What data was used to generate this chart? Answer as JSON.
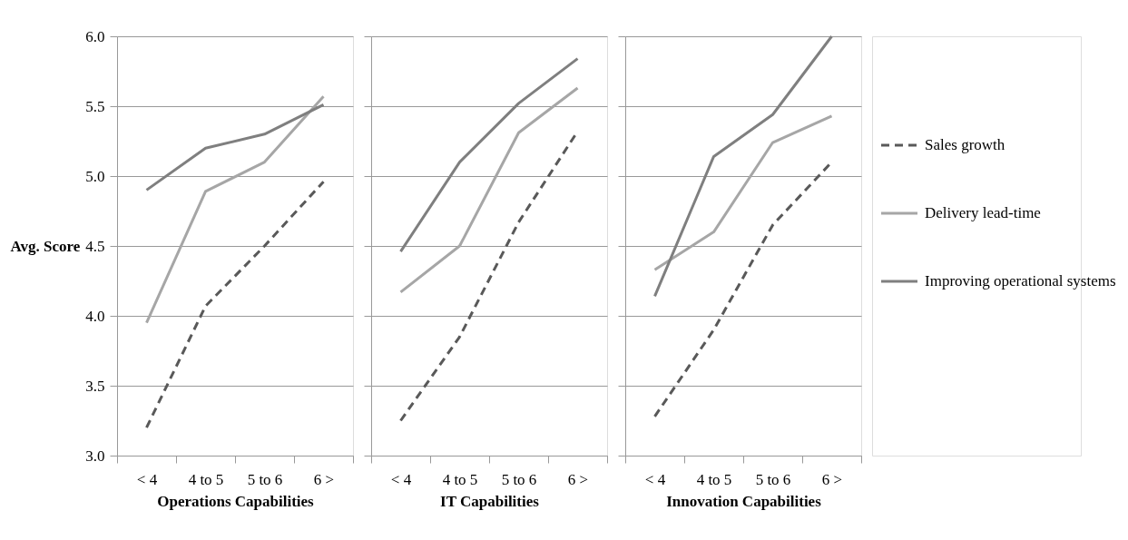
{
  "chart_data": [
    {
      "type": "line",
      "xlabel": "Operations Capabilities",
      "ylabel": "Avg. Score",
      "categories": [
        "< 4",
        "4 to 5",
        "5 to 6",
        "6 >"
      ],
      "ylim": [
        3.0,
        6.0
      ],
      "yticks": [
        {
          "value": 3,
          "label": "3.0"
        },
        {
          "value": 3.5,
          "label": "3.5"
        },
        {
          "value": 4,
          "label": "4.0"
        },
        {
          "value": 4.5,
          "label": "4.5"
        },
        {
          "value": 5,
          "label": "5.0"
        },
        {
          "value": 5.5,
          "label": "5.5"
        },
        {
          "value": 6,
          "label": "6.0"
        }
      ],
      "grid": "y",
      "series": [
        {
          "color": "#595959",
          "line_style": "dashed",
          "values": [
            3.2,
            4.07,
            4.5,
            4.96
          ]
        },
        {
          "color": "#a6a6a6",
          "line_style": "solid",
          "values": [
            3.95,
            4.89,
            5.1,
            5.57
          ]
        },
        {
          "color": "#7f7f7f",
          "line_style": "solid",
          "values": [
            4.9,
            5.2,
            5.3,
            5.51
          ]
        }
      ]
    },
    {
      "type": "line",
      "xlabel": "IT Capabilities",
      "categories": [
        "< 4",
        "4 to 5",
        "5 to 6",
        "6 >"
      ],
      "ylim": [
        3.0,
        6.0
      ],
      "yticks": [
        {
          "value": 3,
          "label": null
        },
        {
          "value": 3.5,
          "label": null
        },
        {
          "value": 4,
          "label": null
        },
        {
          "value": 4.5,
          "label": null
        },
        {
          "value": 5,
          "label": null
        },
        {
          "value": 5.5,
          "label": null
        },
        {
          "value": 6,
          "label": null
        }
      ],
      "grid": "y",
      "tick_labels": "x",
      "series": [
        {
          "color": "#595959",
          "line_style": "dashed",
          "values": [
            3.25,
            3.85,
            4.67,
            5.32
          ]
        },
        {
          "color": "#a6a6a6",
          "line_style": "solid",
          "values": [
            4.17,
            4.5,
            5.31,
            5.63
          ]
        },
        {
          "color": "#7f7f7f",
          "line_style": "solid",
          "values": [
            4.46,
            5.1,
            5.52,
            5.84
          ]
        }
      ]
    },
    {
      "type": "line",
      "xlabel": "Innovation Capabilities",
      "categories": [
        "< 4",
        "4 to 5",
        "5 to 6",
        "6 >"
      ],
      "ylim": [
        3.0,
        6.0
      ],
      "yticks": [
        {
          "value": 3,
          "label": null
        },
        {
          "value": 3.5,
          "label": null
        },
        {
          "value": 4,
          "label": null
        },
        {
          "value": 4.5,
          "label": null
        },
        {
          "value": 5,
          "label": null
        },
        {
          "value": 5.5,
          "label": null
        },
        {
          "value": 6,
          "label": null
        }
      ],
      "grid": "y",
      "legend": "right",
      "tick_labels": "x",
      "series": [
        {
          "name": "Sales growth",
          "color": "#595959",
          "line_style": "dashed",
          "values": [
            3.28,
            3.9,
            4.65,
            5.1
          ]
        },
        {
          "name": "Delivery lead-time",
          "color": "#a6a6a6",
          "line_style": "solid",
          "values": [
            4.33,
            4.6,
            5.24,
            5.43
          ]
        },
        {
          "name": "Improving operational systems",
          "color": "#7f7f7f",
          "line_style": "solid",
          "values": [
            4.14,
            5.14,
            5.44,
            6.0
          ]
        }
      ]
    }
  ]
}
